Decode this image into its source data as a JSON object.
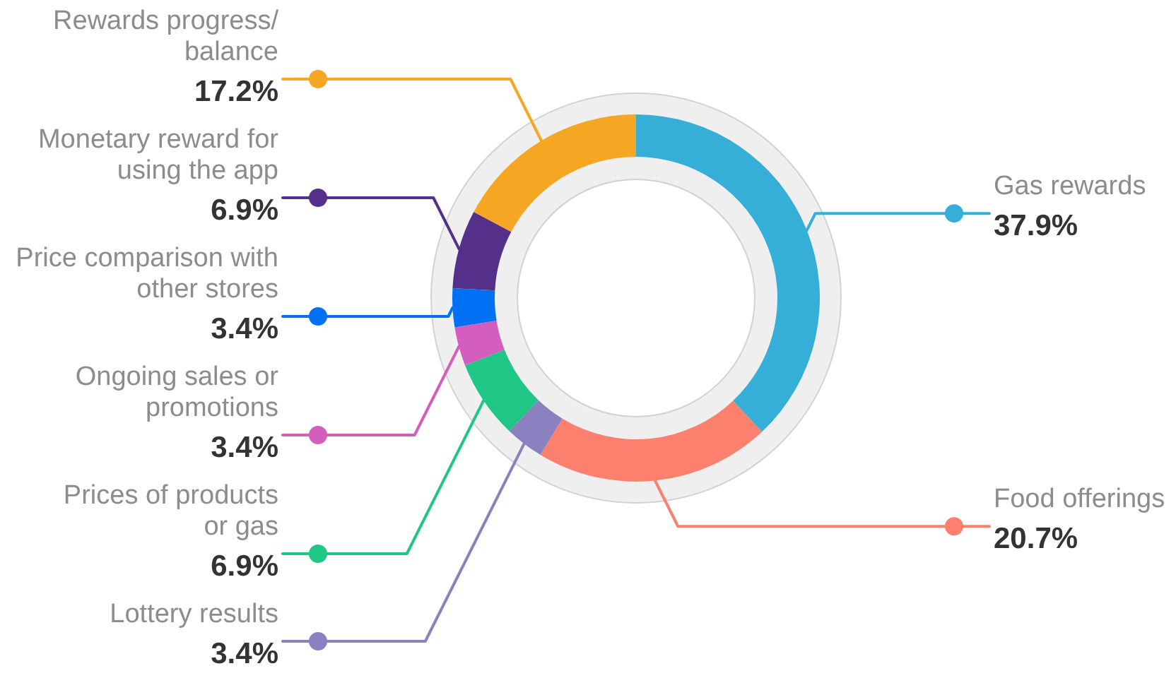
{
  "chart_data": {
    "type": "donut",
    "categories": [
      "Gas rewards",
      "Food offerings",
      "Lottery results",
      "Prices of products\nor gas",
      "Ongoing sales or\npromotions",
      "Price comparison with\nother stores",
      "Monetary reward for\nusing the app",
      "Rewards progress/\nbalance"
    ],
    "values": [
      37.9,
      20.7,
      3.4,
      6.9,
      3.4,
      3.4,
      6.9,
      17.2
    ],
    "value_labels": [
      "37.9%",
      "20.7%",
      "3.4%",
      "6.9%",
      "3.4%",
      "3.4%",
      "6.9%",
      "17.2%"
    ],
    "colors": [
      "#35aed8",
      "#fb806d",
      "#8b80c0",
      "#20c686",
      "#d35ebd",
      "#0070f5",
      "#55308a",
      "#f5a623"
    ]
  }
}
